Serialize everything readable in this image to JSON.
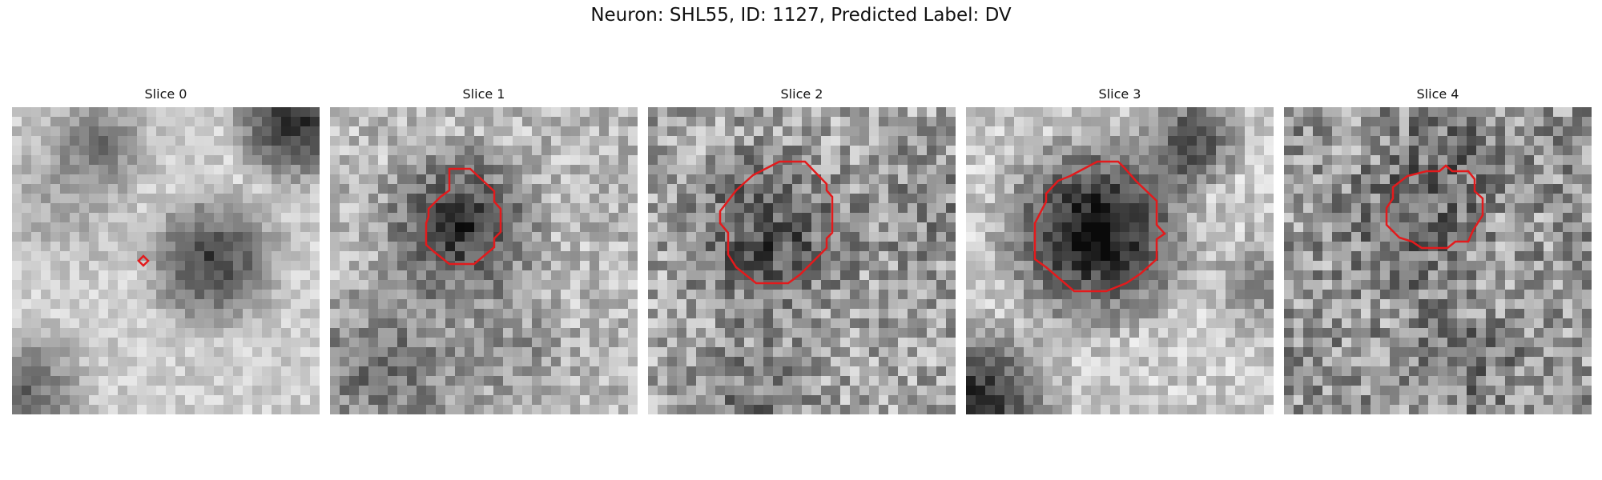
{
  "figure": {
    "title": "Neuron: SHL55, ID: 1127, Predicted Label: DV"
  },
  "panels": [
    {
      "title": "Slice 0",
      "roi": "small marker",
      "contour_color": "#e31a1c"
    },
    {
      "title": "Slice 1",
      "roi": "red polygon contour",
      "contour_color": "#e31a1c"
    },
    {
      "title": "Slice 2",
      "roi": "red polygon contour",
      "contour_color": "#e31a1c"
    },
    {
      "title": "Slice 3",
      "roi": "red polygon contour",
      "contour_color": "#e31a1c"
    },
    {
      "title": "Slice 4",
      "roi": "red polygon contour",
      "contour_color": "#e31a1c"
    }
  ],
  "colormap": "grayscale"
}
